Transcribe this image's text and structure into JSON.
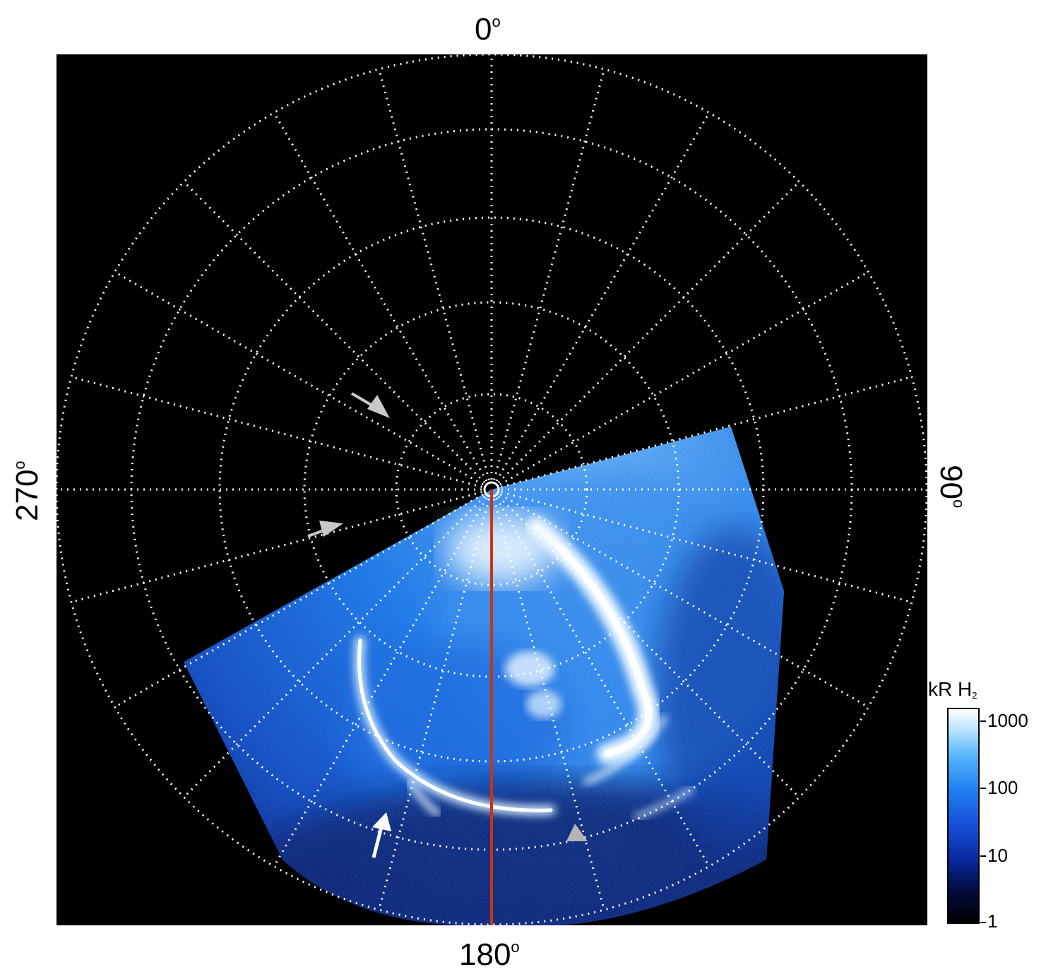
{
  "axis_labels": {
    "top": "0",
    "right": "90",
    "bottom": "180",
    "left": "270",
    "degree_symbol": "o"
  },
  "colorbar": {
    "title_main": "kR H",
    "title_sub": "2",
    "ticks": [
      "1000",
      "100",
      "10",
      "1"
    ],
    "scale": "log",
    "range": [
      1,
      1000
    ],
    "colors": {
      "low": "#000000",
      "mid": "#1f7ff0",
      "high": "#ffffff"
    }
  },
  "image": {
    "background_color": "#000000",
    "grid_color": "#ffffff",
    "meridian_color": "#cc3311",
    "emission_color": "#1f7ff0",
    "arrow_colors": {
      "white": "#ffffff",
      "gray": "#c8c8c8"
    }
  }
}
